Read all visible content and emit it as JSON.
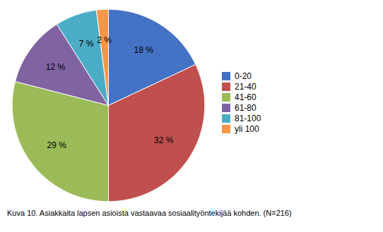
{
  "chart_data": {
    "type": "pie",
    "categories": [
      "0-20",
      "21-40",
      "41-60",
      "61-80",
      "81-100",
      "yli 100"
    ],
    "values": [
      18,
      32,
      29,
      12,
      7,
      2
    ],
    "value_labels": [
      "18 %",
      "32 %",
      "29 %",
      "12 %",
      "7 %",
      "2 %"
    ],
    "colors": [
      "#4472C4",
      "#C0504D",
      "#9BBB59",
      "#8064A2",
      "#4BACC6",
      "#F79646"
    ],
    "data_labels": true,
    "legend": "right",
    "caption": "Kuva 10. Asiakkaita lapsen asioista vastaavaa sosiaalityöntekijää kohden. (N=216)"
  }
}
